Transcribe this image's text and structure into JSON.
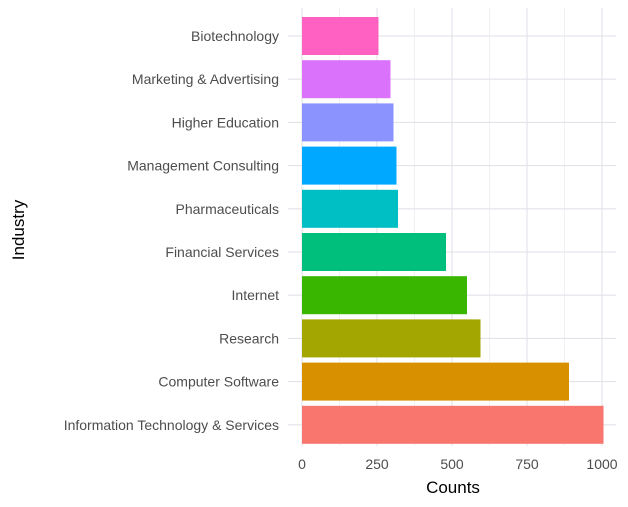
{
  "chart_data": {
    "type": "bar",
    "orientation": "horizontal",
    "title": "",
    "xlabel": "Counts",
    "ylabel": "Industry",
    "xlim": [
      0,
      1000
    ],
    "x_ticks": [
      "0",
      "250",
      "500",
      "750",
      "1000"
    ],
    "x_tick_values": [
      0,
      250,
      500,
      750,
      1000
    ],
    "grid": true,
    "legend": "none",
    "categories": [
      "Biotechnology",
      "Marketing & Advertising",
      "Higher Education",
      "Management Consulting",
      "Pharmaceuticals",
      "Financial Services",
      "Internet",
      "Research",
      "Computer Software",
      "Information Technology & Services"
    ],
    "values": [
      255,
      295,
      305,
      315,
      320,
      480,
      550,
      595,
      890,
      1005
    ],
    "colors": [
      "#FF61C3",
      "#DB72FB",
      "#8B93FF",
      "#00A9FF",
      "#00BFC4",
      "#00BF7D",
      "#39B600",
      "#A3A500",
      "#D89000",
      "#F8766D"
    ]
  }
}
